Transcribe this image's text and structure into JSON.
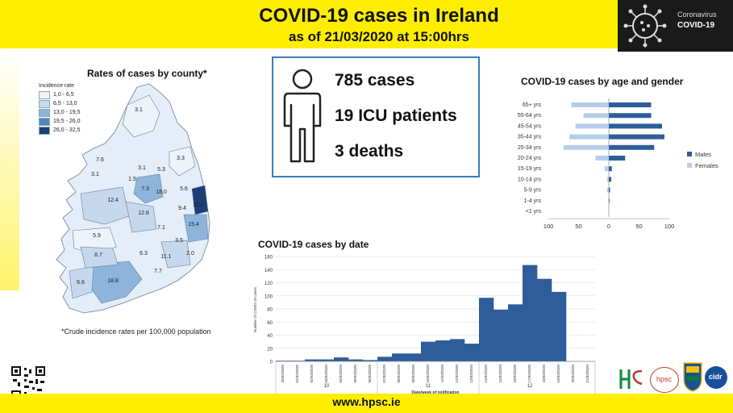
{
  "header": {
    "title": "COVID-19 cases in Ireland",
    "subtitle": "as of 21/03/2020 at 15:00hrs",
    "logo_line1": "Coronavirus",
    "logo_line2": "COVID-19",
    "logo_icon": "coronavirus-icon"
  },
  "summary": {
    "icon": "person-icon",
    "cases": "785 cases",
    "icu": "19 ICU patients",
    "deaths": "3 deaths"
  },
  "footer": {
    "url": "www.hpsc.ie",
    "qr_icon": "qr-code-icon",
    "partners": [
      "hpsc",
      "cidr"
    ]
  },
  "colors": {
    "header_yellow": "#ffee00",
    "males": "#2e5d9a",
    "females": "#b5cde8",
    "date_bars": "#2e5d9a",
    "summary_border": "#3b7dbf"
  },
  "chart_data": [
    {
      "type": "map",
      "title": "Rates of cases by county*",
      "legend_title": "Incidence rate",
      "legend": [
        {
          "label": "1,0 - 6,5",
          "color": "#eef3fa"
        },
        {
          "label": "6,5 - 13,0",
          "color": "#c6d8ee"
        },
        {
          "label": "13,0 - 19,5",
          "color": "#8db5dc"
        },
        {
          "label": "19,5 - 26,0",
          "color": "#5585bd"
        },
        {
          "label": "26,0 - 32,5",
          "color": "#1c3f78"
        }
      ],
      "values": [
        "3.1",
        "7.6",
        "3.3",
        "1.5",
        "3.1",
        "5.3",
        "7.3",
        "18.0",
        "5.6",
        "32.1",
        "3.1",
        "12.4",
        "12.8",
        "9.4",
        "15.4",
        "7.1",
        "5.9",
        "3.5",
        "8.7",
        "6.3",
        "11.1",
        "2.0",
        "6.6",
        "18.8",
        "7.7"
      ],
      "footnote": "*Crude incidence rates per 100,000 population"
    },
    {
      "type": "bar",
      "orientation": "horizontal",
      "title": "COVID-19 cases by age and gender",
      "categories": [
        "65+ yrs",
        "55-64 yrs",
        "45-54 yrs",
        "35-44 yrs",
        "25-34 yrs",
        "20-24 yrs",
        "15-19 yrs",
        "10-14 yrs",
        "5-9 yrs",
        "1-4 yrs",
        "<1 yrs"
      ],
      "series": [
        {
          "name": "Males",
          "values": [
            70,
            70,
            88,
            92,
            75,
            27,
            5,
            4,
            2,
            1,
            0
          ]
        },
        {
          "name": "Females",
          "values": [
            62,
            42,
            55,
            65,
            75,
            22,
            7,
            3,
            3,
            1,
            0
          ]
        }
      ],
      "xticks": [
        "100",
        "50",
        "0",
        "50",
        "100"
      ],
      "xlim": [
        -100,
        100
      ],
      "legend_position": "right"
    },
    {
      "type": "bar",
      "title": "COVID-19 cases by date",
      "xlabel": "Date/week of notification",
      "ylabel": "Number of COVID-19 cases",
      "categories": [
        "29/02/2020",
        "01/03/2020",
        "02/03/2020",
        "03/03/2020",
        "04/03/2020",
        "05/03/2020",
        "06/03/2020",
        "07/03/2020",
        "08/03/2020",
        "09/03/2020",
        "10/03/2020",
        "11/03/2020",
        "12/03/2020",
        "13/03/2020",
        "14/03/2020",
        "15/03/2020",
        "16/03/2020",
        "17/03/2020",
        "18/03/2020",
        "19/03/2020",
        "20/03/2020",
        "21/03/2020"
      ],
      "values": [
        1,
        1,
        3,
        3,
        6,
        3,
        2,
        7,
        12,
        12,
        30,
        32,
        34,
        27,
        97,
        79,
        87,
        147,
        126,
        106,
        0,
        0
      ],
      "weeks": [
        {
          "label": "10",
          "from": 0,
          "to": 7
        },
        {
          "label": "11",
          "from": 7,
          "to": 14
        },
        {
          "label": "12",
          "from": 14,
          "to": 21
        }
      ],
      "yticks": [
        "0",
        "20",
        "40",
        "60",
        "80",
        "100",
        "120",
        "140",
        "160"
      ],
      "ylim": [
        0,
        160
      ]
    }
  ]
}
